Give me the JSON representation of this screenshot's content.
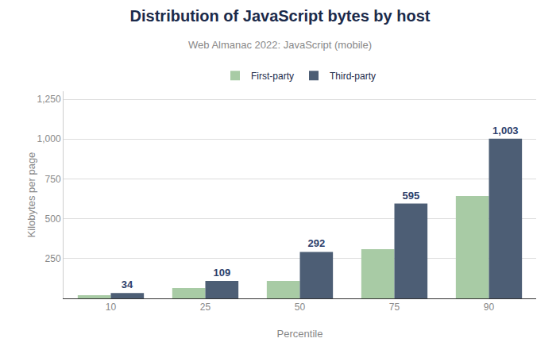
{
  "chart_data": {
    "type": "bar",
    "title": "Distribution of JavaScript bytes by host",
    "subtitle": "Web Almanac 2022: JavaScript (mobile)",
    "x_label": "Percentile",
    "y_label": "Kilobytes per page",
    "categories": [
      "10",
      "25",
      "50",
      "75",
      "90"
    ],
    "series": [
      {
        "name": "First-party",
        "color": "#a8cba5",
        "values": [
          20,
          65,
          109,
          309,
          642
        ]
      },
      {
        "name": "Third-party",
        "color": "#4d5e75",
        "values": [
          34,
          109,
          292,
          595,
          1003
        ],
        "data_labels": true,
        "value_labels": [
          "34",
          "109",
          "292",
          "595",
          "1,003"
        ]
      }
    ],
    "ylim": [
      0,
      1300
    ],
    "yticks": [
      250,
      500,
      750,
      {
        "value": 1000,
        "label": "1,000"
      },
      {
        "value": 1250,
        "label": "1,250"
      }
    ],
    "grid": true,
    "legend": "top"
  }
}
